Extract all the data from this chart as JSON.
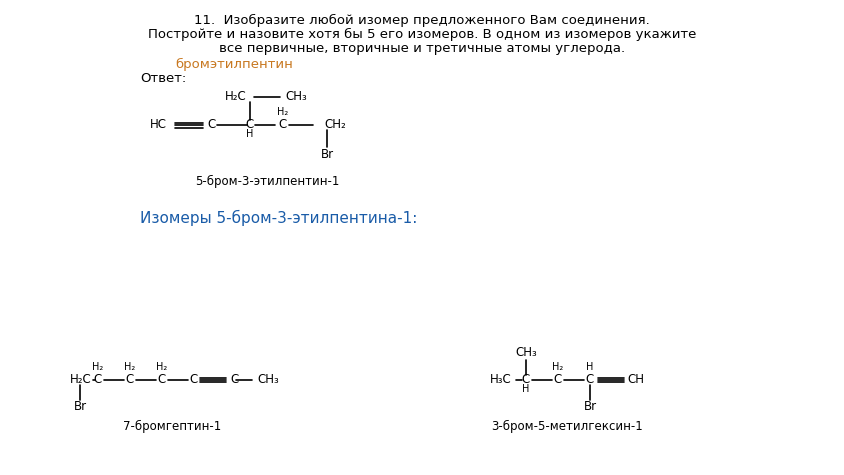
{
  "title_text": "11.  Изобразите любой изомер предложенного Вам соединения. Постройте и назовите хотя бы 5 его изомеров. В одном из изомеров укажите все первичные, вторичные и третичные атомы углерода.",
  "compound_name": "бромэтилпентин",
  "answer_label": "Ответ:",
  "isomers_label": "Изомеры 5-бром-3-этилпентина-1:",
  "mol1_name": "5-бром-3-этилпентин-1",
  "mol2_name": "7-бромгептин-1",
  "mol3_name": "3-бром-5-метилгексин-1",
  "bg_color": "#ffffff",
  "text_color": "#000000",
  "blue_color": "#1a5ca8",
  "orange_color": "#c87820"
}
